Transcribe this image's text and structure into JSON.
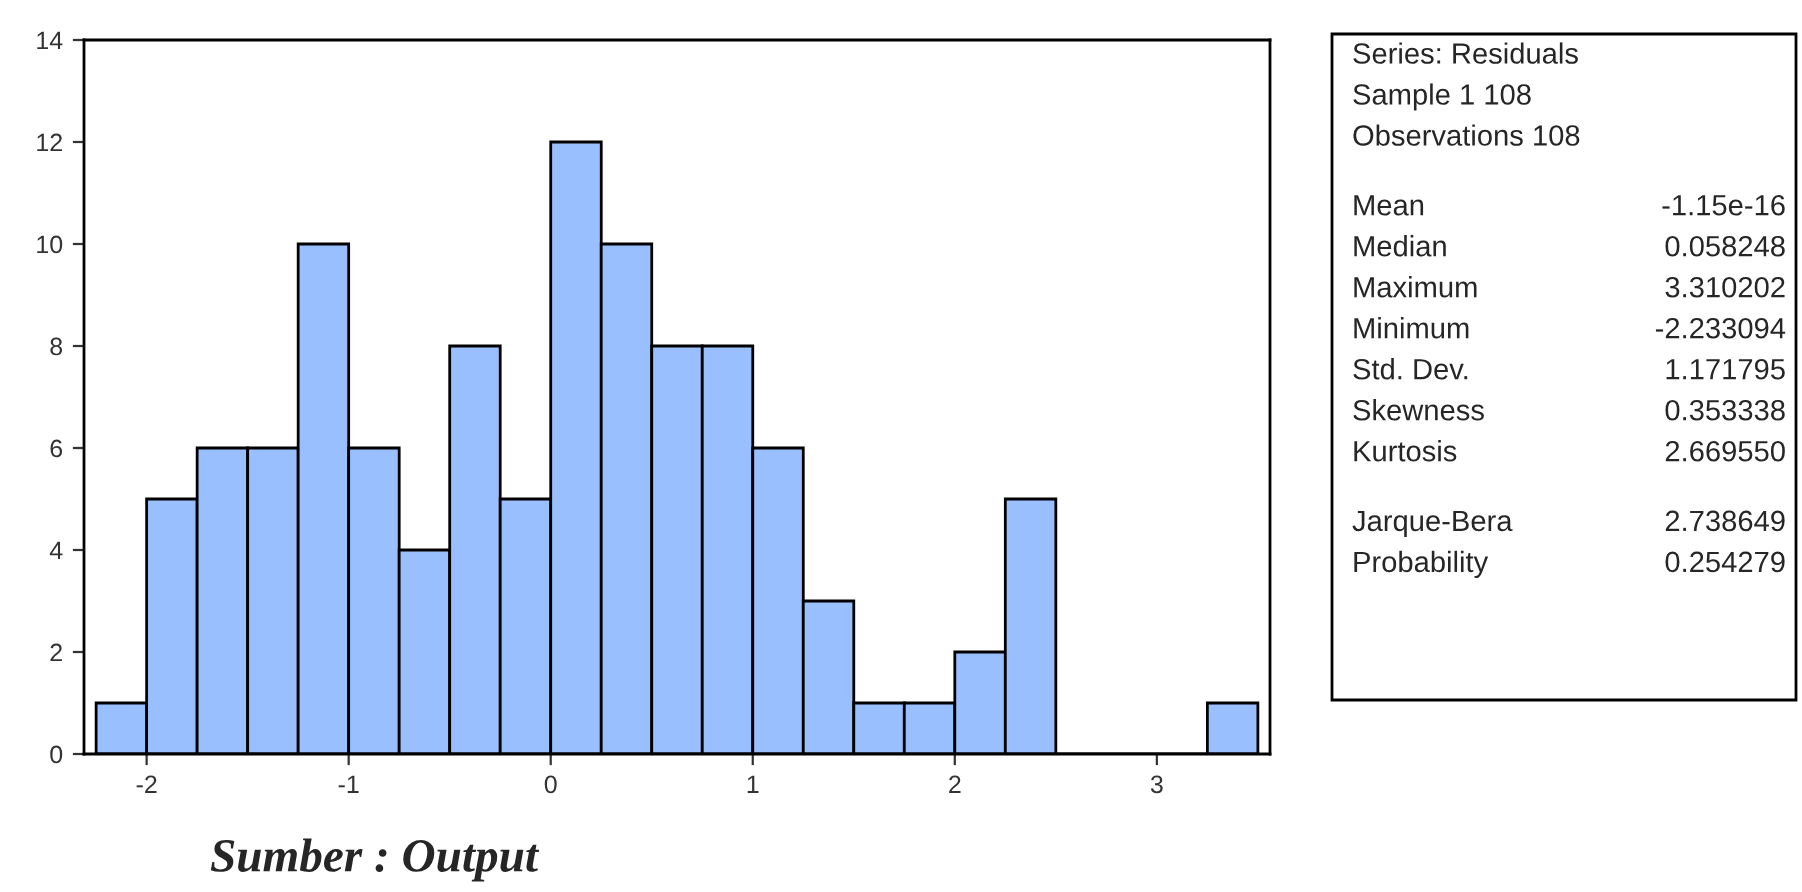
{
  "chart_data": {
    "type": "histogram",
    "bins": [
      -2.25,
      -2.0,
      -1.75,
      -1.5,
      -1.25,
      -1.0,
      -0.75,
      -0.5,
      -0.25,
      0.0,
      0.25,
      0.5,
      0.75,
      1.0,
      1.25,
      1.5,
      1.75,
      2.0,
      2.25,
      2.5,
      2.75,
      3.0,
      3.25,
      3.5
    ],
    "values": [
      1,
      5,
      6,
      6,
      10,
      6,
      4,
      8,
      5,
      12,
      10,
      8,
      8,
      6,
      3,
      1,
      1,
      2,
      5,
      0,
      0,
      0,
      1
    ],
    "color": "#99bfff",
    "xlim": [
      -2.31,
      3.56
    ],
    "xticks": [
      -2,
      -1,
      0,
      1,
      2,
      3
    ],
    "ylim": [
      0,
      14
    ],
    "yticks": [
      0,
      2,
      4,
      6,
      8,
      10,
      12,
      14
    ],
    "grid": false,
    "legend": false,
    "annotations": [
      "Series: Residuals",
      "Sample 1 108",
      "Observations 108",
      "Mean",
      "-1.15e-16",
      "Median",
      "0.058248",
      "Maximum",
      "3.310202",
      "Minimum",
      "-2.233094",
      "Std. Dev.",
      "1.171795",
      "Skewness",
      "0.353338",
      "Kurtosis",
      "2.669550",
      "Jarque-Bera",
      "2.738649",
      "Probability",
      "0.254279",
      "Sumber : Output"
    ]
  }
}
